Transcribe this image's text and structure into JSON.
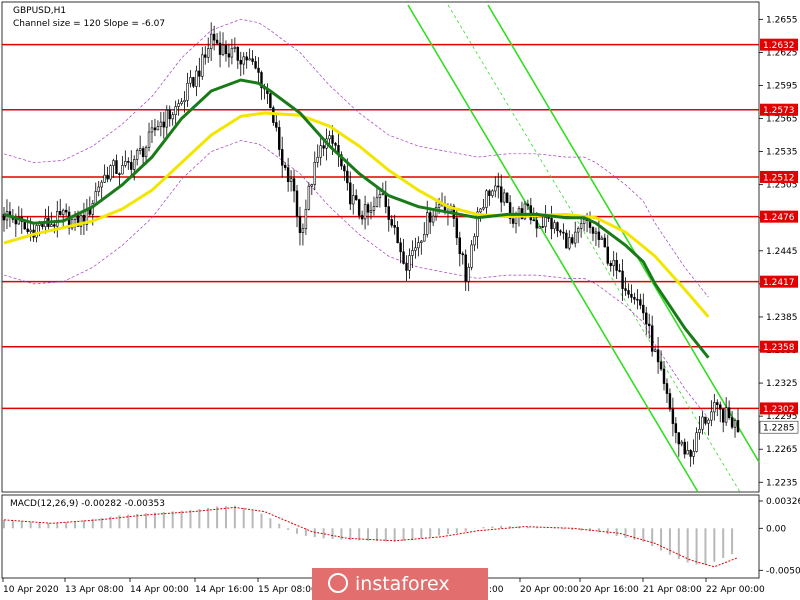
{
  "chart_data": {
    "type": "candlestick",
    "symbol_label": "GBPUSD,H1",
    "channel_label": "Channel size = 120 Slope = -6.07",
    "price_axis": {
      "ylim": [
        1.2228,
        1.2668
      ],
      "ticks": [
        "1.2655",
        "1.2625",
        "1.2595",
        "1.2565",
        "1.2535",
        "1.2505",
        "1.2475",
        "1.2445",
        "1.2415",
        "1.2385",
        "1.2355",
        "1.2325",
        "1.2295",
        "1.2265",
        "1.2235"
      ]
    },
    "time_labels": [
      "10 Apr 2020",
      "13 Apr 08:00",
      "14 Apr 00:00",
      "14 Apr 16:00",
      "15 Apr 08:00",
      "20 Apr 00:00",
      "20 Apr 16:00",
      "21 Apr 08:00",
      "22 Apr 00:00"
    ],
    "time_label_hidden": ":00",
    "levels": [
      {
        "value": 1.2632,
        "label": "1.2632"
      },
      {
        "value": 1.2573,
        "label": "1.2573"
      },
      {
        "value": 1.2512,
        "label": "1.2512"
      },
      {
        "value": 1.2476,
        "label": "1.2476"
      },
      {
        "value": 1.2417,
        "label": "1.2417"
      },
      {
        "value": 1.2358,
        "label": "1.2358"
      },
      {
        "value": 1.2302,
        "label": "1.2302"
      }
    ],
    "current_price": {
      "value": 1.2285,
      "label": "1.2285"
    },
    "close_path": [
      [
        0,
        1.2478
      ],
      [
        4,
        1.2473
      ],
      [
        8,
        1.2462
      ],
      [
        12,
        1.2468
      ],
      [
        16,
        1.247
      ],
      [
        20,
        1.2476
      ],
      [
        24,
        1.247
      ],
      [
        28,
        1.2476
      ],
      [
        32,
        1.2505
      ],
      [
        36,
        1.252
      ],
      [
        40,
        1.2518
      ],
      [
        44,
        1.2528
      ],
      [
        48,
        1.254
      ],
      [
        52,
        1.256
      ],
      [
        56,
        1.2568
      ],
      [
        60,
        1.258
      ],
      [
        64,
        1.26
      ],
      [
        68,
        1.262
      ],
      [
        70,
        1.264
      ],
      [
        74,
        1.2628
      ],
      [
        78,
        1.2622
      ],
      [
        82,
        1.262
      ],
      [
        86,
        1.2605
      ],
      [
        90,
        1.258
      ],
      [
        94,
        1.252
      ],
      [
        98,
        1.25
      ],
      [
        100,
        1.246
      ],
      [
        104,
        1.251
      ],
      [
        108,
        1.2545
      ],
      [
        112,
        1.254
      ],
      [
        116,
        1.25
      ],
      [
        120,
        1.248
      ],
      [
        124,
        1.2478
      ],
      [
        128,
        1.25
      ],
      [
        132,
        1.246
      ],
      [
        136,
        1.2435
      ],
      [
        140,
        1.2455
      ],
      [
        144,
        1.2478
      ],
      [
        148,
        1.249
      ],
      [
        152,
        1.2475
      ],
      [
        156,
        1.242
      ],
      [
        160,
        1.248
      ],
      [
        164,
        1.25
      ],
      [
        168,
        1.2495
      ],
      [
        172,
        1.2475
      ],
      [
        176,
        1.2482
      ],
      [
        180,
        1.247
      ],
      [
        184,
        1.2472
      ],
      [
        188,
        1.246
      ],
      [
        192,
        1.245
      ],
      [
        196,
        1.247
      ],
      [
        200,
        1.246
      ],
      [
        204,
        1.244
      ],
      [
        208,
        1.242
      ],
      [
        212,
        1.241
      ],
      [
        216,
        1.239
      ],
      [
        220,
        1.235
      ],
      [
        224,
        1.231
      ],
      [
        228,
        1.227
      ],
      [
        232,
        1.226
      ],
      [
        236,
        1.229
      ],
      [
        240,
        1.23
      ],
      [
        244,
        1.2295
      ],
      [
        248,
        1.2285
      ]
    ],
    "ma_fast": [
      [
        0,
        1.2478
      ],
      [
        10,
        1.247
      ],
      [
        20,
        1.2472
      ],
      [
        30,
        1.2485
      ],
      [
        40,
        1.2505
      ],
      [
        50,
        1.253
      ],
      [
        60,
        1.2565
      ],
      [
        70,
        1.259
      ],
      [
        80,
        1.26
      ],
      [
        86,
        1.2597
      ],
      [
        90,
        1.259
      ],
      [
        100,
        1.257
      ],
      [
        110,
        1.254
      ],
      [
        120,
        1.2515
      ],
      [
        130,
        1.2495
      ],
      [
        140,
        1.2485
      ],
      [
        150,
        1.248
      ],
      [
        160,
        1.2475
      ],
      [
        170,
        1.2478
      ],
      [
        180,
        1.2478
      ],
      [
        190,
        1.2475
      ],
      [
        196,
        1.2475
      ],
      [
        200,
        1.247
      ],
      [
        210,
        1.245
      ],
      [
        216,
        1.2435
      ],
      [
        220,
        1.2415
      ],
      [
        230,
        1.2375
      ],
      [
        238,
        1.2348
      ]
    ],
    "ma_slow": [
      [
        0,
        1.2452
      ],
      [
        10,
        1.246
      ],
      [
        20,
        1.2466
      ],
      [
        30,
        1.2472
      ],
      [
        40,
        1.2483
      ],
      [
        50,
        1.25
      ],
      [
        60,
        1.2525
      ],
      [
        70,
        1.255
      ],
      [
        80,
        1.2567
      ],
      [
        88,
        1.257
      ],
      [
        100,
        1.2568
      ],
      [
        110,
        1.2558
      ],
      [
        120,
        1.254
      ],
      [
        130,
        1.2518
      ],
      [
        140,
        1.25
      ],
      [
        150,
        1.2485
      ],
      [
        160,
        1.2478
      ],
      [
        170,
        1.2476
      ],
      [
        180,
        1.2477
      ],
      [
        190,
        1.2478
      ],
      [
        200,
        1.2475
      ],
      [
        210,
        1.2462
      ],
      [
        220,
        1.244
      ],
      [
        230,
        1.241
      ],
      [
        238,
        1.2385
      ]
    ],
    "macd": {
      "label": "MACD(12,26,9) -0.00282 -0.00353",
      "ylim": [
        -0.0057,
        0.0035
      ],
      "ticks": [
        "0.00326",
        "0.00",
        "-0.00502"
      ],
      "hist": [
        [
          0,
          0.001
        ],
        [
          8,
          0.0008
        ],
        [
          16,
          0.0006
        ],
        [
          24,
          0.0008
        ],
        [
          32,
          0.0012
        ],
        [
          40,
          0.0016
        ],
        [
          48,
          0.0018
        ],
        [
          56,
          0.002
        ],
        [
          64,
          0.0022
        ],
        [
          72,
          0.0026
        ],
        [
          78,
          0.0027
        ],
        [
          84,
          0.0022
        ],
        [
          88,
          0.0016
        ],
        [
          92,
          0.0008
        ],
        [
          96,
          -0.0002
        ],
        [
          100,
          -0.0008
        ],
        [
          108,
          -0.0012
        ],
        [
          116,
          -0.0014
        ],
        [
          124,
          -0.0015
        ],
        [
          132,
          -0.0016
        ],
        [
          140,
          -0.0013
        ],
        [
          148,
          -0.0008
        ],
        [
          156,
          -0.0004
        ],
        [
          160,
          0.0001
        ],
        [
          168,
          0.0003
        ],
        [
          176,
          0.0002
        ],
        [
          184,
          0.0
        ],
        [
          192,
          -0.0002
        ],
        [
          200,
          -0.0004
        ],
        [
          208,
          -0.001
        ],
        [
          216,
          -0.0016
        ],
        [
          224,
          -0.003
        ],
        [
          230,
          -0.004
        ],
        [
          236,
          -0.0045
        ],
        [
          240,
          -0.004
        ],
        [
          244,
          -0.0034
        ],
        [
          248,
          -0.0028
        ]
      ],
      "signal": [
        [
          0,
          0.001
        ],
        [
          16,
          0.0006
        ],
        [
          32,
          0.001
        ],
        [
          48,
          0.0016
        ],
        [
          64,
          0.002
        ],
        [
          78,
          0.0025
        ],
        [
          88,
          0.002
        ],
        [
          96,
          0.0008
        ],
        [
          104,
          -0.0004
        ],
        [
          116,
          -0.0012
        ],
        [
          132,
          -0.0015
        ],
        [
          148,
          -0.001
        ],
        [
          160,
          -0.0003
        ],
        [
          176,
          0.0002
        ],
        [
          192,
          0.0
        ],
        [
          208,
          -0.0006
        ],
        [
          220,
          -0.0018
        ],
        [
          232,
          -0.0038
        ],
        [
          240,
          -0.0046
        ],
        [
          248,
          -0.0035
        ]
      ]
    },
    "watermark": "instaforex"
  }
}
